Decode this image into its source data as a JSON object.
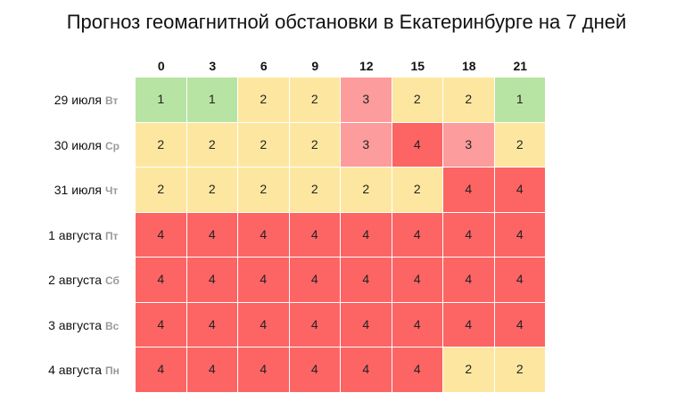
{
  "colors": {
    "level_1": "#b7e3a3",
    "level_2": "#fde7a0",
    "level_3": "#fd9c9c",
    "level_4": "#fd6464"
  },
  "chart_data": {
    "type": "heatmap",
    "title": "Прогноз геомагнитной обстановки в Екатеринбурге на 7 дней",
    "columns": [
      "0",
      "3",
      "6",
      "9",
      "12",
      "15",
      "18",
      "21"
    ],
    "rows": [
      {
        "date": "29 июля",
        "dow": "Вт",
        "values": [
          1,
          1,
          2,
          2,
          3,
          2,
          2,
          1
        ]
      },
      {
        "date": "30 июля",
        "dow": "Ср",
        "values": [
          2,
          2,
          2,
          2,
          3,
          4,
          3,
          2
        ]
      },
      {
        "date": "31 июля",
        "dow": "Чт",
        "values": [
          2,
          2,
          2,
          2,
          2,
          2,
          4,
          4
        ]
      },
      {
        "date": "1 августа",
        "dow": "Пт",
        "values": [
          4,
          4,
          4,
          4,
          4,
          4,
          4,
          4
        ]
      },
      {
        "date": "2 августа",
        "dow": "Сб",
        "values": [
          4,
          4,
          4,
          4,
          4,
          4,
          4,
          4
        ]
      },
      {
        "date": "3 августа",
        "dow": "Вс",
        "values": [
          4,
          4,
          4,
          4,
          4,
          4,
          4,
          4
        ]
      },
      {
        "date": "4 августа",
        "dow": "Пн",
        "values": [
          4,
          4,
          4,
          4,
          4,
          4,
          2,
          2
        ]
      }
    ]
  }
}
